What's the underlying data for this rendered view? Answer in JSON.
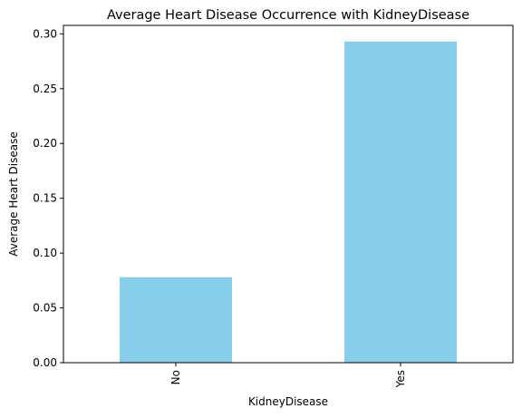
{
  "chart_data": {
    "type": "bar",
    "title": "Average Heart Disease Occurrence with KidneyDisease",
    "xlabel": "KidneyDisease",
    "ylabel": "Average Heart Disease",
    "categories": [
      "No",
      "Yes"
    ],
    "values": [
      0.078,
      0.293
    ],
    "ylim": [
      0,
      0.3077
    ],
    "yticks": [
      "0.00",
      "0.05",
      "0.10",
      "0.15",
      "0.20",
      "0.25",
      "0.30"
    ],
    "grid": false,
    "bar_color": "#87CEEB"
  }
}
